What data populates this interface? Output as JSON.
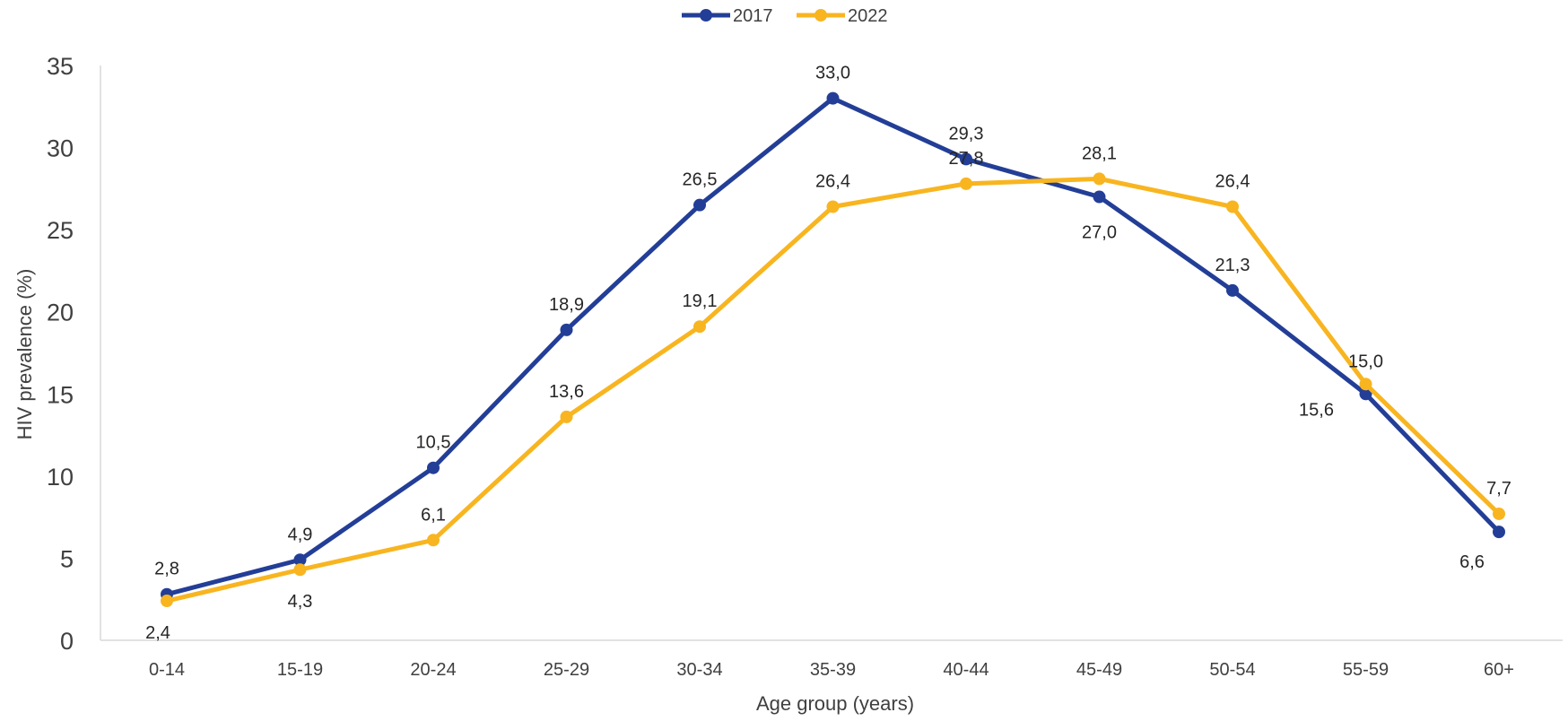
{
  "chart_data": {
    "type": "line",
    "title": "",
    "xlabel": "Age group (years)",
    "ylabel": "HIV prevalence (%)",
    "categories": [
      "0-14",
      "15-19",
      "20-24",
      "25-29",
      "30-34",
      "35-39",
      "40-44",
      "45-49",
      "50-54",
      "55-59",
      "60+"
    ],
    "ylim": [
      0,
      35
    ],
    "yticks": [
      0,
      5,
      10,
      15,
      20,
      25,
      30,
      35
    ],
    "grid": false,
    "legend_position": "top-center",
    "series": [
      {
        "name": "2017",
        "color": "#233E97",
        "values": [
          2.8,
          4.9,
          10.5,
          18.9,
          26.5,
          33.0,
          29.3,
          27.0,
          21.3,
          15.0,
          6.6
        ],
        "labels": [
          "2,8",
          "4,9",
          "10,5",
          "18,9",
          "26,5",
          "33,0",
          "29,3",
          "27,0",
          "21,3",
          "15,0",
          "6,6"
        ]
      },
      {
        "name": "2022",
        "color": "#F8B520",
        "values": [
          2.4,
          4.3,
          6.1,
          13.6,
          19.1,
          26.4,
          27.8,
          28.1,
          26.4,
          15.6,
          7.7
        ],
        "labels": [
          "2,4",
          "4,3",
          "6,1",
          "13,6",
          "19,1",
          "26,4",
          "27,8",
          "28,1",
          "26,4",
          "15,6",
          "7,7"
        ]
      }
    ]
  }
}
